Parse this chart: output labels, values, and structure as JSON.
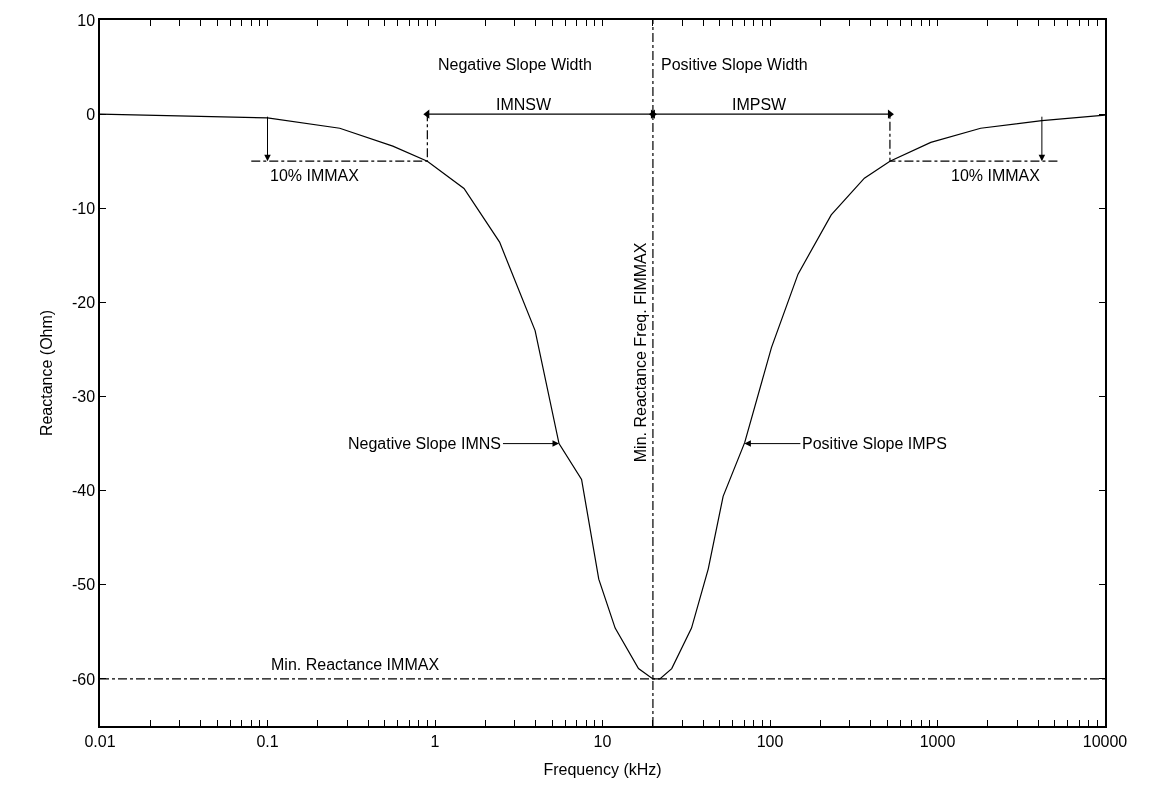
{
  "chart_data": {
    "type": "line",
    "xlabel": "Frequency (kHz)",
    "ylabel": "Reactance (Ohm)",
    "log": "x",
    "xlim": [
      0.01,
      10000
    ],
    "ylim": [
      -65,
      10
    ],
    "xticks": [
      0.01,
      {
        "value": 0.02,
        "label": null
      },
      {
        "value": 0.03,
        "label": null
      },
      {
        "value": 0.04,
        "label": null
      },
      {
        "value": 0.05,
        "label": null
      },
      {
        "value": 0.06,
        "label": null
      },
      {
        "value": 0.07,
        "label": null
      },
      {
        "value": 0.08,
        "label": null
      },
      {
        "value": 0.09,
        "label": null
      },
      0.1,
      {
        "value": 0.2,
        "label": null
      },
      {
        "value": 0.3,
        "label": null
      },
      {
        "value": 0.4,
        "label": null
      },
      {
        "value": 0.5,
        "label": null
      },
      {
        "value": 0.6,
        "label": null
      },
      {
        "value": 0.7,
        "label": null
      },
      {
        "value": 0.8,
        "label": null
      },
      {
        "value": 0.9,
        "label": null
      },
      1,
      {
        "value": 2,
        "label": null
      },
      {
        "value": 3,
        "label": null
      },
      {
        "value": 4,
        "label": null
      },
      {
        "value": 5,
        "label": null
      },
      {
        "value": 6,
        "label": null
      },
      {
        "value": 7,
        "label": null
      },
      {
        "value": 8,
        "label": null
      },
      {
        "value": 9,
        "label": null
      },
      10,
      {
        "value": 20,
        "label": null
      },
      {
        "value": 30,
        "label": null
      },
      {
        "value": 40,
        "label": null
      },
      {
        "value": 50,
        "label": null
      },
      {
        "value": 60,
        "label": null
      },
      {
        "value": 70,
        "label": null
      },
      {
        "value": 80,
        "label": null
      },
      {
        "value": 90,
        "label": null
      },
      100,
      {
        "value": 200,
        "label": null
      },
      {
        "value": 300,
        "label": null
      },
      {
        "value": 400,
        "label": null
      },
      {
        "value": 500,
        "label": null
      },
      {
        "value": 600,
        "label": null
      },
      {
        "value": 700,
        "label": null
      },
      {
        "value": 800,
        "label": null
      },
      {
        "value": 900,
        "label": null
      },
      1000,
      {
        "value": 2000,
        "label": null
      },
      {
        "value": 3000,
        "label": null
      },
      {
        "value": 4000,
        "label": null
      },
      {
        "value": 5000,
        "label": null
      },
      {
        "value": 6000,
        "label": null
      },
      {
        "value": 7000,
        "label": null
      },
      {
        "value": 8000,
        "label": null
      },
      {
        "value": 9000,
        "label": null
      },
      10000
    ],
    "yticks": [
      10,
      0,
      -10,
      -20,
      -30,
      -40,
      -50,
      -60
    ],
    "marker": "none",
    "series": [
      {
        "color": "#000000",
        "line_style": "solid",
        "x": [
          0.01,
          0.1,
          0.27,
          0.56,
          0.9,
          1.49,
          2.43,
          3.96,
          5.5,
          7.5,
          9.5,
          11.9,
          16.4,
          20,
          22,
          25.9,
          34,
          42.8,
          52.5,
          70.6,
          102,
          147,
          232,
          366,
          520,
          912,
          1810,
          4200,
          10000
        ],
        "values": [
          0,
          -0.4,
          -1.5,
          -3.4,
          -5,
          -7.9,
          -13.6,
          -23,
          -35,
          -38.8,
          -49.4,
          -54.6,
          -58.9,
          -60,
          -60,
          -58.9,
          -54.6,
          -48.3,
          -40.6,
          -34.9,
          -24.8,
          -17,
          -10.7,
          -6.8,
          -5,
          -3,
          -1.5,
          -0.7,
          -0.1
        ]
      },
      {
        "color": "#000000",
        "line_style": "dashed",
        "x": [
          0.08,
          0.9,
          0.9
        ],
        "values": [
          -5,
          -5,
          0
        ]
      },
      {
        "color": "#000000",
        "line_style": "dashed",
        "x": [
          5200,
          520,
          520
        ],
        "values": [
          -5,
          -5,
          0
        ]
      },
      {
        "color": "#000000",
        "line_style": "solid",
        "marker": "triangle",
        "x": [
          0.9,
          20
        ],
        "values": [
          0,
          0
        ]
      },
      {
        "color": "#000000",
        "line_style": "solid",
        "marker": "triangle",
        "x": [
          20,
          520
        ],
        "values": [
          0,
          0
        ]
      }
    ],
    "ref_lines": [
      {
        "axis": "x",
        "value": 20,
        "label": "Min. Reactance Freq. FIMMAX",
        "color": "#000000",
        "line_style": "dashed"
      },
      {
        "axis": "y",
        "value": -60,
        "label": "Min. Reactance IMMAX",
        "color": "#000000",
        "line_style": "dashed"
      }
    ],
    "annotations": [
      "Negative Slope Width",
      "IMNSW",
      "Positive Slope Width",
      "IMPSW",
      {
        "text": "10% IMMAX",
        "x": 0.1,
        "y": -5
      },
      {
        "text": "10% IMMAX",
        "x": 4200,
        "y": -5
      },
      "Negative Slope IMNS",
      "Positive Slope IMPS"
    ]
  }
}
